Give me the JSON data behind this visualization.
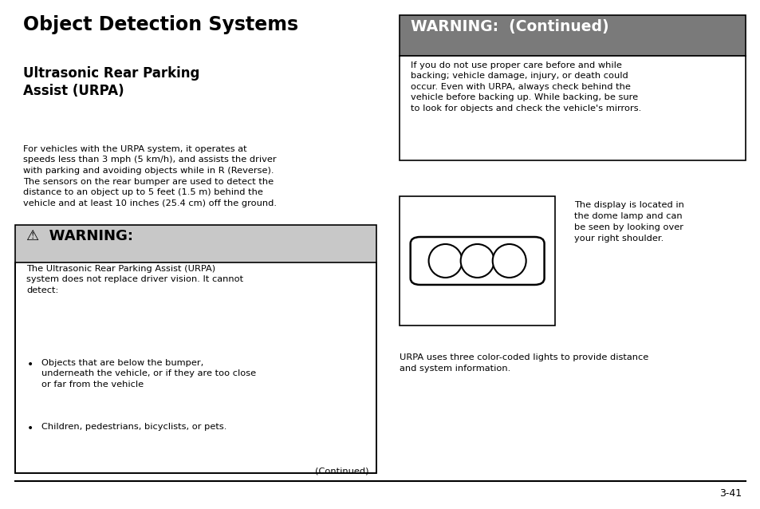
{
  "bg_color": "#ffffff",
  "title_main": "Object Detection Systems",
  "subtitle": "Ultrasonic Rear Parking\nAssist (URPA)",
  "body_text": "For vehicles with the URPA system, it operates at\nspeeds less than 3 mph (5 km/h), and assists the driver\nwith parking and avoiding objects while in R (Reverse).\nThe sensors on the rear bumper are used to detect the\ndistance to an object up to 5 feet (1.5 m) behind the\nvehicle and at least 10 inches (25.4 cm) off the ground.",
  "warning_header": "⚠  WARNING:",
  "warning_header_bg": "#c8c8c8",
  "warning_body": "The Ultrasonic Rear Parking Assist (URPA)\nsystem does not replace driver vision. It cannot\ndetect:",
  "bullet1": "Objects that are below the bumper,\nunderneath the vehicle, or if they are too close\nor far from the vehicle",
  "bullet2": "Children, pedestrians, bicyclists, or pets.",
  "continued_text": "(Continued)",
  "warn_cont_header": "WARNING:  (Continued)",
  "warn_cont_header_bg": "#7a7a7a",
  "warn_cont_body": "If you do not use proper care before and while\nbacking; vehicle damage, injury, or death could\noccur. Even with URPA, always check behind the\nvehicle before backing up. While backing, be sure\nto look for objects and check the vehicle's mirrors.",
  "display_text": "The display is located in\nthe dome lamp and can\nbe seen by looking over\nyour right shoulder.",
  "urpa_text": "URPA uses three color-coded lights to provide distance\nand system information.",
  "page_num": "3-41"
}
